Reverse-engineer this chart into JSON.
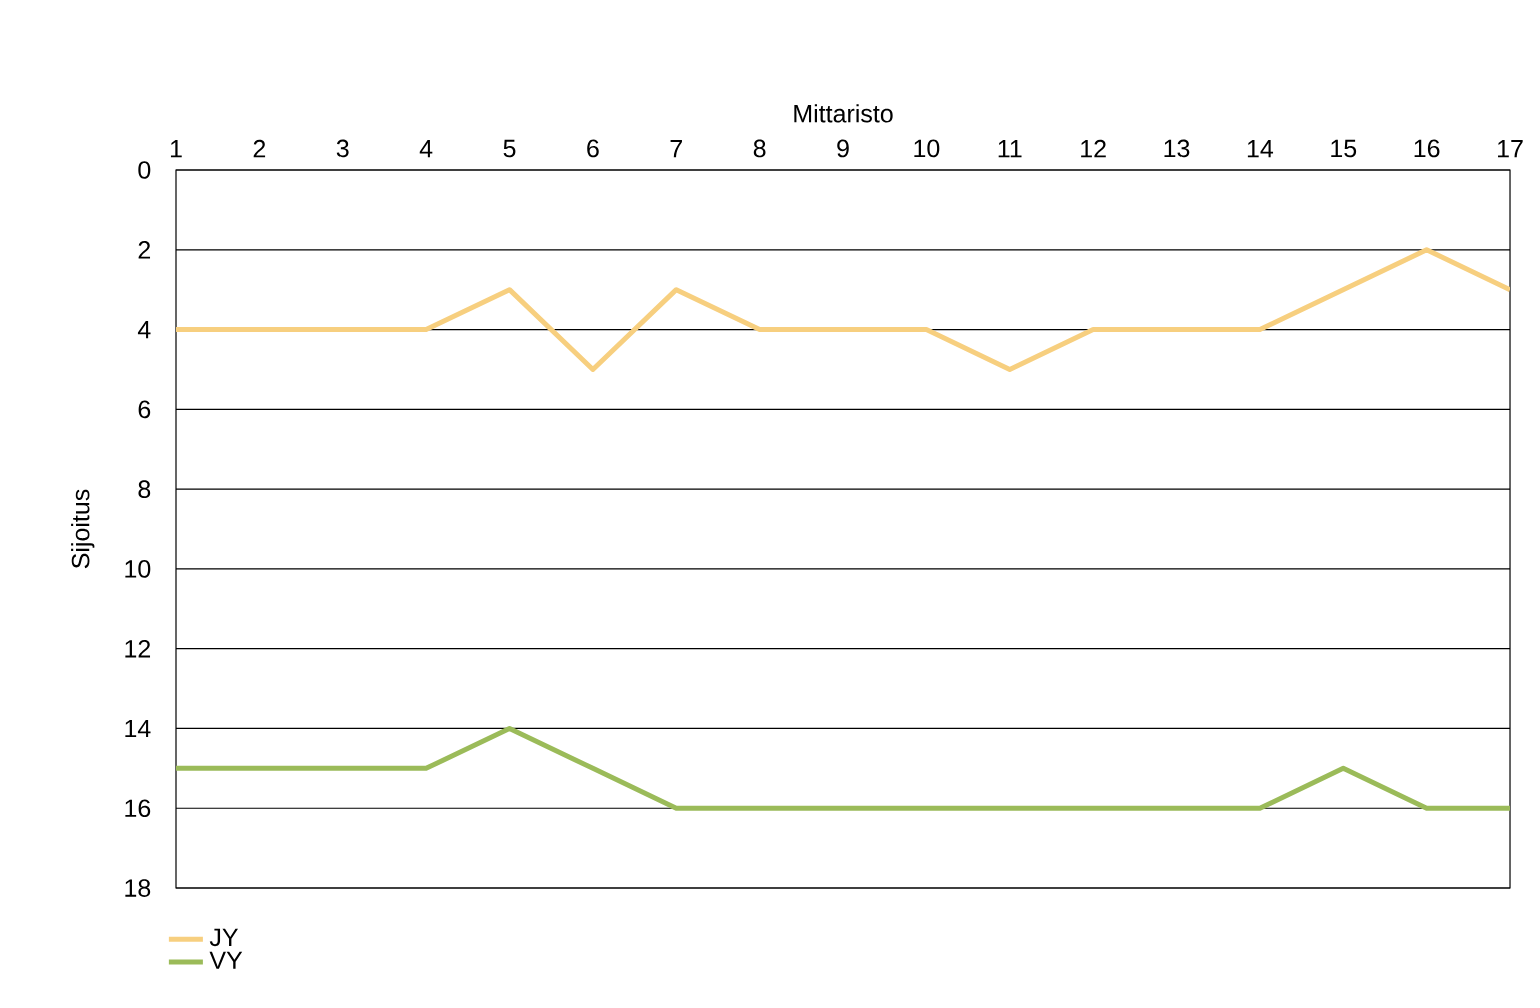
{
  "chart_data": {
    "type": "line",
    "xlabel": "Mittaristo",
    "ylabel": "Sijoitus",
    "x": [
      1,
      2,
      3,
      4,
      5,
      6,
      7,
      8,
      9,
      10,
      11,
      12,
      13,
      14,
      15,
      16,
      17
    ],
    "xlim": [
      1,
      17
    ],
    "xticks": [
      1,
      2,
      3,
      4,
      5,
      6,
      7,
      8,
      9,
      10,
      11,
      12,
      13,
      14,
      15,
      16,
      17
    ],
    "ylim": [
      18,
      0
    ],
    "yticks": [
      0,
      2,
      4,
      6,
      8,
      10,
      12,
      14,
      16,
      18
    ],
    "grid": "y",
    "legend": "bottom left",
    "series": [
      {
        "name": "JY",
        "color": "#f7cf7f",
        "values": [
          4,
          4,
          4,
          4,
          3,
          5,
          3,
          4,
          4,
          4,
          5,
          4,
          4,
          4,
          3,
          2,
          3
        ]
      },
      {
        "name": "VY",
        "color": "#9bbb59",
        "values": [
          15,
          15,
          15,
          15,
          14,
          15,
          16,
          16,
          16,
          16,
          16,
          16,
          16,
          16,
          15,
          16,
          16
        ]
      }
    ]
  }
}
